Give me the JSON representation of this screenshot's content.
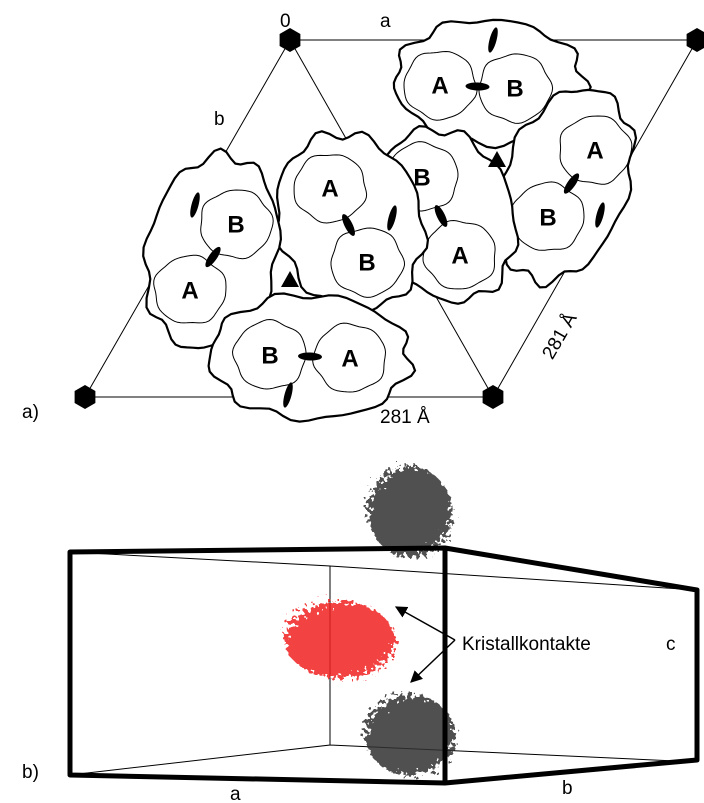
{
  "panel_a": {
    "label": "a)",
    "origin": "0",
    "axis_a": "a",
    "axis_b": "b",
    "length_a": "281 Å",
    "length_b": "281 Å",
    "subunits": [
      "A",
      "B",
      "A",
      "B",
      "B",
      "A",
      "A",
      "B",
      "B",
      "A",
      "B",
      "A"
    ]
  },
  "panel_b": {
    "label": "b)",
    "annotation": "Kristallkontakte",
    "axis_a": "a",
    "axis_b": "b",
    "axis_c": "c"
  }
}
